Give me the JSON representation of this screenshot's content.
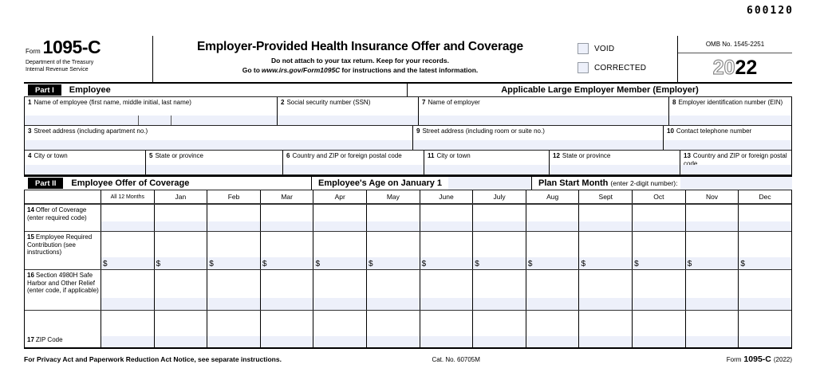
{
  "page": {
    "print_code": "600120"
  },
  "colors": {
    "input_shade": "#edf0fa",
    "checkbox_border": "#949aa3",
    "bar_black": "#000000"
  },
  "header": {
    "form_word": "Form",
    "form_number": "1095-C",
    "agency_line1": "Department of the Treasury",
    "agency_line2": "Internal Revenue Service",
    "title": "Employer-Provided Health Insurance Offer and Coverage",
    "subtitle": "Do not attach to your tax return. Keep for your records.",
    "goto_prefix": "Go to",
    "goto_url": "www.irs.gov/Form1095C",
    "goto_suffix": "for instructions and the latest information.",
    "void_label": "VOID",
    "corrected_label": "CORRECTED",
    "omb": "OMB No. 1545-2251",
    "year_outline": "20",
    "year_bold": "22"
  },
  "part1": {
    "badge": "Part I",
    "left_title": "Employee",
    "right_title": "Applicable Large Employer Member (Employer)",
    "fields": {
      "f1": {
        "num": "1",
        "label": "Name of employee (first name, middle initial, last name)"
      },
      "f2": {
        "num": "2",
        "label": "Social security number (SSN)"
      },
      "f3": {
        "num": "3",
        "label": "Street address (including apartment no.)"
      },
      "f4": {
        "num": "4",
        "label": "City or town"
      },
      "f5": {
        "num": "5",
        "label": "State or province"
      },
      "f6": {
        "num": "6",
        "label": "Country and ZIP or foreign postal code"
      },
      "f7": {
        "num": "7",
        "label": "Name of employer"
      },
      "f8": {
        "num": "8",
        "label": "Employer identification number (EIN)"
      },
      "f9": {
        "num": "9",
        "label": "Street address (including room or suite no.)"
      },
      "f10": {
        "num": "10",
        "label": "Contact telephone number"
      },
      "f11": {
        "num": "11",
        "label": "City or town"
      },
      "f12": {
        "num": "12",
        "label": "State or province"
      },
      "f13": {
        "num": "13",
        "label": "Country and ZIP or foreign postal code"
      }
    }
  },
  "part2": {
    "badge": "Part II",
    "title": "Employee Offer of Coverage",
    "age_title": "Employee's Age on January 1",
    "plan_title": "Plan Start Month",
    "plan_note": "(enter 2-digit number):",
    "columns": [
      "All 12 Months",
      "Jan",
      "Feb",
      "Mar",
      "Apr",
      "May",
      "June",
      "July",
      "Aug",
      "Sept",
      "Oct",
      "Nov",
      "Dec"
    ],
    "dollar_sign": "$",
    "rows": [
      {
        "num": "14",
        "kind": "code",
        "label": "Offer of Coverage (enter required code)"
      },
      {
        "num": "15",
        "kind": "dollar",
        "label": "Employee Required Contribution (see instructions)"
      },
      {
        "num": "16",
        "kind": "code",
        "label": "Section 4980H Safe Harbor and Other Relief (enter code, if applicable)"
      },
      {
        "num": "17",
        "kind": "zip",
        "label": "ZIP Code"
      }
    ]
  },
  "footer": {
    "privacy": "For Privacy Act and Paperwork Reduction Act Notice, see separate instructions.",
    "cat_no": "Cat. No. 60705M",
    "form_word": "Form",
    "form_number": "1095-C",
    "year": "(2022)"
  }
}
